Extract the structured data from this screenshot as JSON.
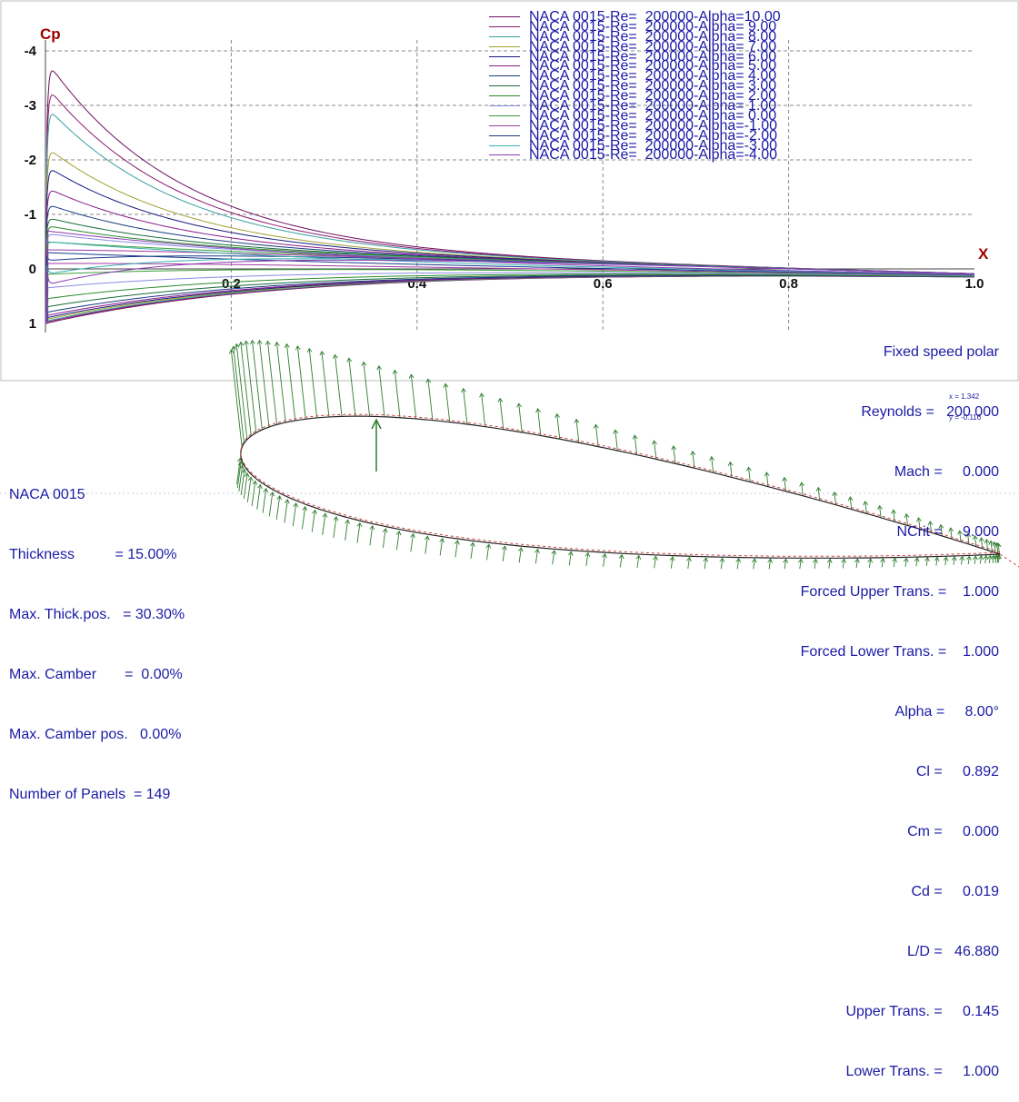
{
  "colors": {
    "text_blue": "#1a1aa6",
    "axis_title_red": "#a00000",
    "vector_green": "#2e7d2e",
    "grid": "#8a8a8a"
  },
  "chart_data": {
    "type": "line",
    "ylabel": "Cp",
    "xlabel": "X",
    "xlim": [
      0,
      1.0
    ],
    "ylim": [
      1,
      -4
    ],
    "y_inverted": true,
    "grid": true,
    "legend_placement": "top-right",
    "x_ticks": [
      "0.2",
      "0.4",
      "0.6",
      "0.8",
      "1.0"
    ],
    "y_ticks": [
      "-4",
      "-3",
      "-2",
      "-1",
      "0",
      "1"
    ],
    "series": [
      {
        "name": "NACA 0015-Re=  200000-Alpha=10.00",
        "alpha": 10,
        "color": "#6e1060",
        "peak": -3.85,
        "lower_peak": 1.0
      },
      {
        "name": "NACA 0015-Re=  200000-Alpha= 9.00",
        "alpha": 9,
        "color": "#8a1a6e",
        "peak": -3.38,
        "lower_peak": 0.98
      },
      {
        "name": "NACA 0015-Re=  200000-Alpha= 8.00",
        "alpha": 8,
        "color": "#3aa0a0",
        "peak": -3.0,
        "lower_peak": 0.96
      },
      {
        "name": "NACA 0015-Re=  200000-Alpha= 7.00",
        "alpha": 7,
        "color": "#a0a030",
        "peak": -2.25,
        "lower_peak": 0.93
      },
      {
        "name": "NACA 0015-Re=  200000-Alpha= 6.00",
        "alpha": 6,
        "color": "#1a1a80",
        "peak": -1.9,
        "lower_peak": 0.9
      },
      {
        "name": "NACA 0015-Re=  200000-Alpha= 5.00",
        "alpha": 5,
        "color": "#8a1a8a",
        "peak": -1.5,
        "lower_peak": 0.86
      },
      {
        "name": "NACA 0015-Re=  200000-Alpha= 4.00",
        "alpha": 4,
        "color": "#1a3a80",
        "peak": -1.2,
        "lower_peak": 0.8
      },
      {
        "name": "NACA 0015-Re=  200000-Alpha= 3.00",
        "alpha": 3,
        "color": "#1a6a3a",
        "peak": -0.95,
        "lower_peak": 0.7
      },
      {
        "name": "NACA 0015-Re=  200000-Alpha= 2.00",
        "alpha": 2,
        "color": "#2a8a2a",
        "peak": -0.8,
        "lower_peak": 0.55
      },
      {
        "name": "NACA 0015-Re=  200000-Alpha= 1.00",
        "alpha": 1,
        "color": "#8a8ae6",
        "peak": -0.65,
        "lower_peak": 0.35
      },
      {
        "name": "NACA 0015-Re=  200000-Alpha= 0.00",
        "alpha": 0,
        "color": "#3aa03a",
        "peak": -0.5,
        "lower_peak": 0.1
      },
      {
        "name": "NACA 0015-Re=  200000-Alpha=-1.00",
        "alpha": -1,
        "color": "#a03aa0",
        "peak": -0.35,
        "lower_peak": -0.1
      },
      {
        "name": "NACA 0015-Re=  200000-Alpha=-2.00",
        "alpha": -2,
        "color": "#1a3a8a",
        "peak": -0.15,
        "lower_peak": -0.3
      },
      {
        "name": "NACA 0015-Re=  200000-Alpha=-3.00",
        "alpha": -3,
        "color": "#3ab0b0",
        "peak": 0.1,
        "lower_peak": -0.5
      },
      {
        "name": "NACA 0015-Re=  200000-Alpha=-4.00",
        "alpha": -4,
        "color": "#8a3ab0",
        "peak": 0.3,
        "lower_peak": -0.7
      }
    ]
  },
  "airfoil_info": {
    "name": "NACA 0015",
    "thickness": "Thickness          = 15.00%",
    "max_thick_pos": "Max. Thick.pos.   = 30.30%",
    "max_camber": "Max. Camber       =  0.00%",
    "max_camber_pos": "Max. Camber pos.   0.00%",
    "panels": "Number of Panels  = 149"
  },
  "polar_info": {
    "title": "Fixed speed polar",
    "reynolds": "Reynolds =   200 000",
    "mach": "Mach =     0.000",
    "ncrit": "NCrit =     9.000",
    "forced_upper": "Forced Upper Trans. =    1.000",
    "forced_lower": "Forced Lower Trans. =    1.000",
    "alpha": "Alpha =     8.00°",
    "cl": "Cl =     0.892",
    "cm": "Cm =     0.000",
    "cd": "Cd =     0.019",
    "ld": "L/D =   46.880",
    "upper_trans": "Upper Trans. =     0.145",
    "lower_trans": "Lower Trans. =     1.000"
  },
  "cursor_readout": {
    "x": "x = 1.342",
    "y": "y = -0.116"
  }
}
